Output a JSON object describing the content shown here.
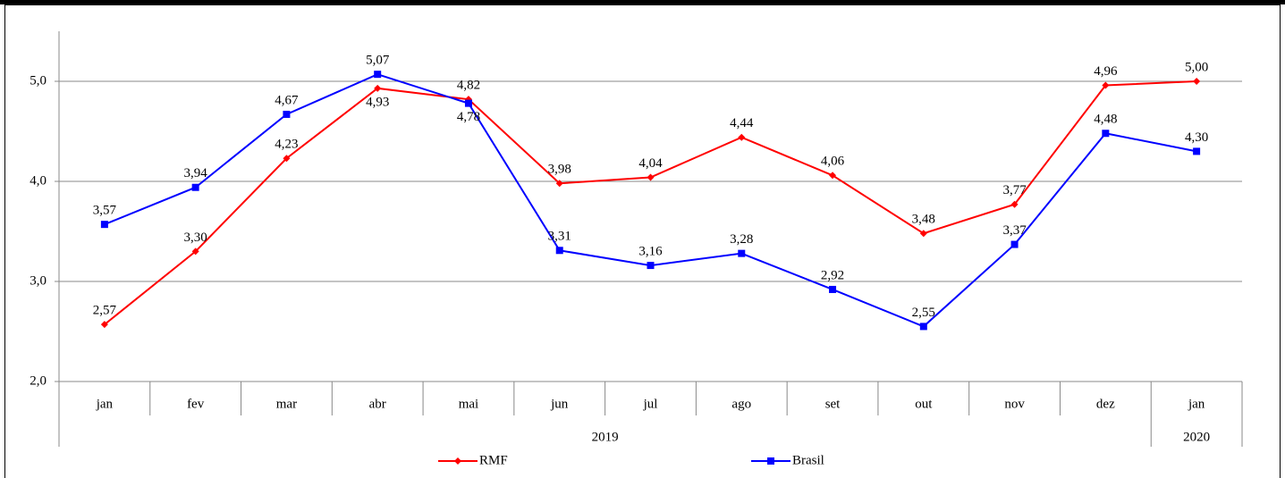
{
  "chart_data": {
    "type": "line",
    "categories": [
      "jan",
      "fev",
      "mar",
      "abr",
      "mai",
      "jun",
      "jul",
      "ago",
      "set",
      "out",
      "nov",
      "dez",
      "jan"
    ],
    "year_labels": [
      "2019",
      "2020"
    ],
    "ylim": [
      2,
      5.5
    ],
    "yticks": [
      {
        "value": 2,
        "label": "2,0"
      },
      {
        "value": 3,
        "label": "3,0"
      },
      {
        "value": 4,
        "label": "4,0"
      },
      {
        "value": 5,
        "label": "5,0"
      }
    ],
    "grid": true,
    "legend": "bottom",
    "series": [
      {
        "name": "RMF",
        "color": "#ff0000",
        "marker": "diamond",
        "values": [
          2.57,
          3.3,
          4.23,
          4.93,
          4.82,
          3.98,
          4.04,
          4.44,
          4.06,
          3.48,
          3.77,
          4.96,
          5.0
        ],
        "value_labels": [
          "2,57",
          "3,30",
          "4,23",
          "4,93",
          "4,82",
          "3,98",
          "4,04",
          "4,44",
          "4,06",
          "3,48",
          "3,77",
          "4,96",
          "5,00"
        ]
      },
      {
        "name": "Brasil",
        "color": "#0000ff",
        "marker": "square",
        "values": [
          3.57,
          3.94,
          4.67,
          5.07,
          4.78,
          3.31,
          3.16,
          3.28,
          2.92,
          2.55,
          3.37,
          4.48,
          4.3
        ],
        "value_labels": [
          "3,57",
          "3,94",
          "4,67",
          "5,07",
          "4,78",
          "3,31",
          "3,16",
          "3,28",
          "2,92",
          "2,55",
          "3,37",
          "4,48",
          "4,30"
        ]
      }
    ]
  }
}
